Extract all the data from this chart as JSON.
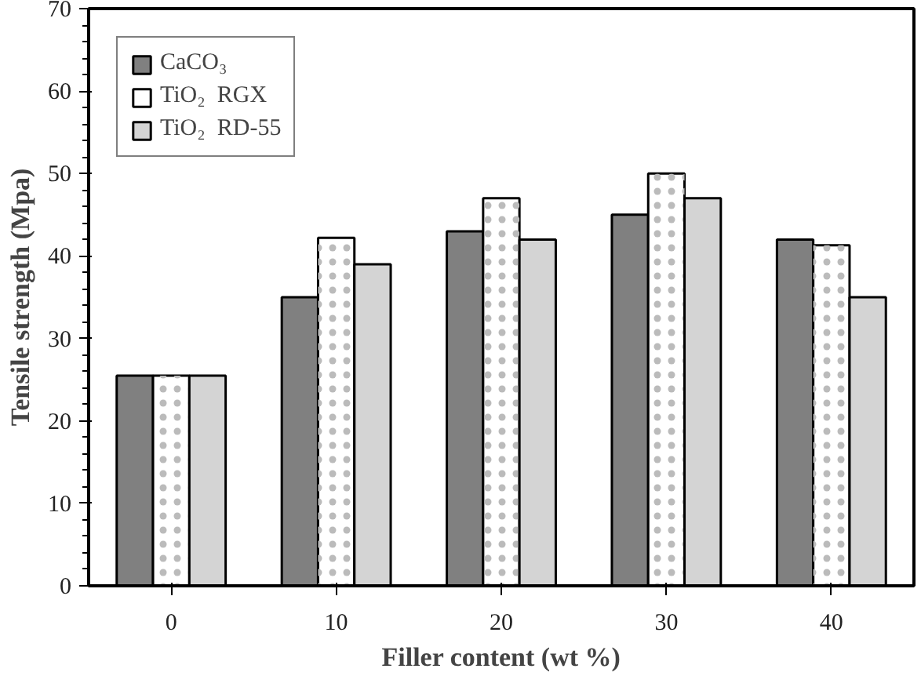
{
  "chart_data": {
    "type": "bar",
    "xlabel": "Filler content (wt %)",
    "ylabel": "Tensile strength (Mpa)",
    "categories": [
      "0",
      "10",
      "20",
      "30",
      "40"
    ],
    "series": [
      {
        "name": "CaCO₃",
        "color": "#808080",
        "values": [
          25.5,
          35,
          43,
          45,
          42
        ]
      },
      {
        "name": "TiO₂  RGX",
        "color": "#ffffff",
        "values": [
          25.5,
          42.2,
          47,
          50,
          41.3
        ]
      },
      {
        "name": "TiO₂  RD-55",
        "color": "#d4d4d4",
        "values": [
          25.5,
          39,
          42,
          47,
          35
        ]
      }
    ],
    "ylim": [
      0,
      70
    ],
    "yticks": [
      0,
      10,
      20,
      30,
      40,
      50,
      60,
      70
    ],
    "grid": false,
    "legend": "top left"
  }
}
